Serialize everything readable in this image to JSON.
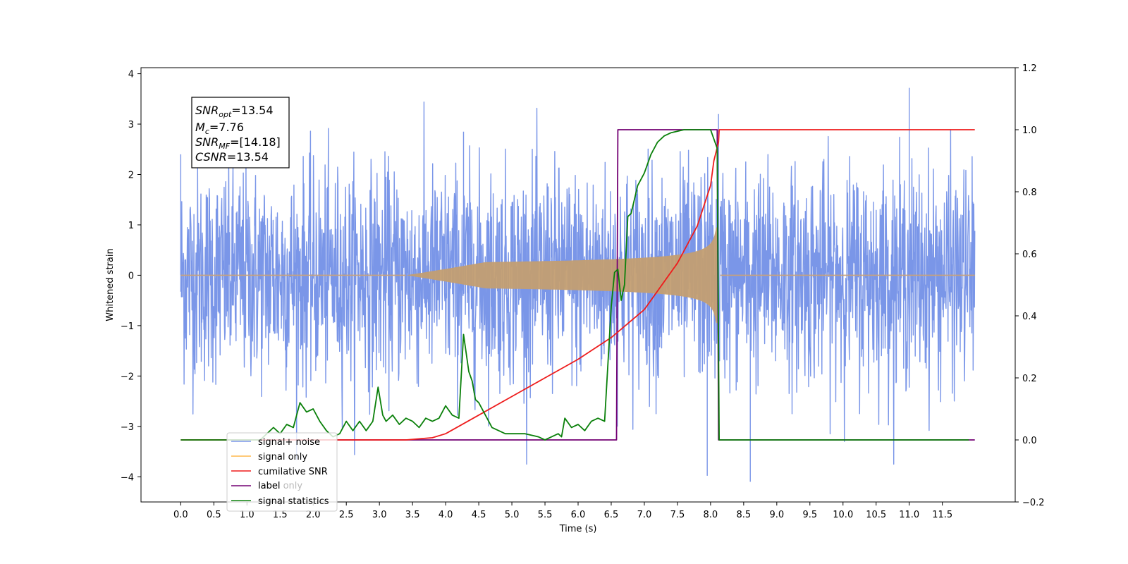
{
  "chart_data": {
    "type": "line",
    "xlabel": "Time (s)",
    "ylabel": "Whitened strain",
    "xlim": [
      -0.6,
      12.6
    ],
    "ylim": [
      -4.5,
      4.12
    ],
    "y2lim": [
      -0.2,
      1.2
    ],
    "x_ticks": [
      "0.0",
      "0.5",
      "1.0",
      "1.5",
      "2.0",
      "2.5",
      "3.0",
      "3.5",
      "4.0",
      "4.5",
      "5.0",
      "5.5",
      "6.0",
      "6.5",
      "7.0",
      "7.5",
      "8.0",
      "8.5",
      "9.0",
      "9.5",
      "10.0",
      "10.5",
      "11.0",
      "11.5"
    ],
    "y_ticks": [
      "−4",
      "−3",
      "−2",
      "−1",
      "0",
      "1",
      "2",
      "3",
      "4"
    ],
    "y2_ticks": [
      "−0.2",
      "0.0",
      "0.2",
      "0.4",
      "0.6",
      "0.8",
      "1.0",
      "1.2"
    ],
    "legend_position": "lower-left",
    "annotation": [
      {
        "sym": "SNR",
        "sub": "opt",
        "value": "=13.54"
      },
      {
        "sym": "M",
        "sub": "c",
        "value": "=7.76"
      },
      {
        "sym": "SNR",
        "sub": "MF",
        "value": "=[14.18]"
      },
      {
        "sym": "CSNR",
        "sub": "",
        "value": "=13.54"
      }
    ],
    "series": [
      {
        "name": "signal+ noise",
        "axis": "left",
        "color": "#7a96e8",
        "x_range": [
          0.0,
          11.99
        ],
        "noise_envelope_abs": 3.75,
        "description_points": [
          [
            0.0,
            2.4
          ],
          [
            4.27,
            2.85
          ],
          [
            8.12,
            3.2
          ],
          [
            11.0,
            3.72
          ],
          [
            8.6,
            -4.1
          ],
          [
            7.95,
            -3.98
          ]
        ]
      },
      {
        "name": "signal only",
        "axis": "left",
        "color": "#c39e72",
        "chirp_start": 3.4,
        "merger_time": 8.1,
        "peak_amplitude": 0.95
      },
      {
        "name": "cumilative SNR",
        "axis": "right",
        "color": "#ee1c1c",
        "x": [
          0.0,
          3.4,
          3.8,
          4.0,
          4.5,
          5.0,
          5.5,
          6.0,
          6.5,
          7.0,
          7.5,
          7.8,
          8.0,
          8.05,
          8.12,
          8.13,
          11.99
        ],
        "y": [
          0.0,
          0.0,
          0.007,
          0.02,
          0.08,
          0.14,
          0.2,
          0.26,
          0.33,
          0.42,
          0.57,
          0.69,
          0.82,
          0.9,
          0.96,
          1.0,
          1.0
        ]
      },
      {
        "name": "label",
        "axis": "right",
        "color": "#730073",
        "x": [
          0.0,
          6.58,
          6.6,
          8.1,
          8.12,
          11.99
        ],
        "y": [
          0.0,
          0.0,
          1.0,
          1.0,
          0.0,
          0.0
        ]
      },
      {
        "name": "label only",
        "axis": "right",
        "color": "#b9b9b9"
      },
      {
        "name": "signal statistics",
        "axis": "right",
        "color": "#0a800a",
        "x": [
          0.0,
          1.2,
          1.4,
          1.5,
          1.6,
          1.7,
          1.8,
          1.9,
          2.0,
          2.1,
          2.2,
          2.3,
          2.4,
          2.5,
          2.6,
          2.7,
          2.8,
          2.9,
          2.98,
          3.05,
          3.1,
          3.2,
          3.3,
          3.4,
          3.5,
          3.6,
          3.7,
          3.8,
          3.9,
          4.0,
          4.1,
          4.2,
          4.27,
          4.35,
          4.4,
          4.45,
          4.5,
          4.6,
          4.7,
          4.8,
          4.9,
          5.0,
          5.2,
          5.4,
          5.5,
          5.6,
          5.7,
          5.75,
          5.8,
          5.9,
          6.0,
          6.1,
          6.2,
          6.3,
          6.4,
          6.5,
          6.55,
          6.6,
          6.65,
          6.7,
          6.75,
          6.8,
          6.9,
          7.0,
          7.1,
          7.2,
          7.3,
          7.4,
          7.6,
          8.0,
          8.1,
          8.13,
          11.9
        ],
        "y": [
          0.0,
          0.0,
          0.04,
          0.02,
          0.05,
          0.04,
          0.12,
          0.09,
          0.1,
          0.06,
          0.03,
          0.01,
          0.02,
          0.06,
          0.03,
          0.06,
          0.03,
          0.06,
          0.17,
          0.08,
          0.06,
          0.08,
          0.05,
          0.07,
          0.06,
          0.04,
          0.07,
          0.06,
          0.07,
          0.11,
          0.08,
          0.07,
          0.34,
          0.22,
          0.19,
          0.13,
          0.12,
          0.08,
          0.04,
          0.03,
          0.02,
          0.02,
          0.02,
          0.01,
          0.0,
          0.01,
          0.02,
          0.01,
          0.07,
          0.04,
          0.05,
          0.03,
          0.06,
          0.07,
          0.06,
          0.43,
          0.54,
          0.55,
          0.45,
          0.5,
          0.72,
          0.73,
          0.82,
          0.86,
          0.92,
          0.96,
          0.98,
          0.99,
          1.0,
          1.0,
          0.94,
          0.0,
          0.0
        ]
      }
    ]
  }
}
